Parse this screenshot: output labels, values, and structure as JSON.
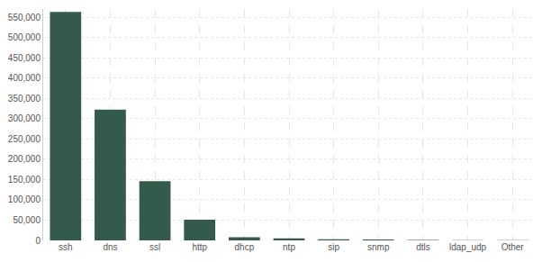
{
  "chart_data": {
    "type": "bar",
    "categories": [
      "ssh",
      "dns",
      "ssl",
      "http",
      "dhcp",
      "ntp",
      "sip",
      "snmp",
      "dtls",
      "ldap_udp",
      "Other"
    ],
    "values": [
      563000,
      322000,
      146000,
      51000,
      8000,
      5000,
      3000,
      2000,
      1000,
      500,
      300
    ],
    "color": "#345a4b",
    "ylim": [
      0,
      570000
    ],
    "yticks": [
      0,
      {
        "value": 50000,
        "label": "50,000"
      },
      {
        "value": 100000,
        "label": "100,000"
      },
      {
        "value": 150000,
        "label": "150,000"
      },
      {
        "value": 200000,
        "label": "200,000"
      },
      {
        "value": 250000,
        "label": "250,000"
      },
      {
        "value": 300000,
        "label": "300,000"
      },
      {
        "value": 350000,
        "label": "350,000"
      },
      {
        "value": 400000,
        "label": "400,000"
      },
      {
        "value": 450000,
        "label": "450,000"
      },
      {
        "value": 500000,
        "label": "500,000"
      },
      {
        "value": 550000,
        "label": "550,000"
      }
    ],
    "grid": true
  }
}
